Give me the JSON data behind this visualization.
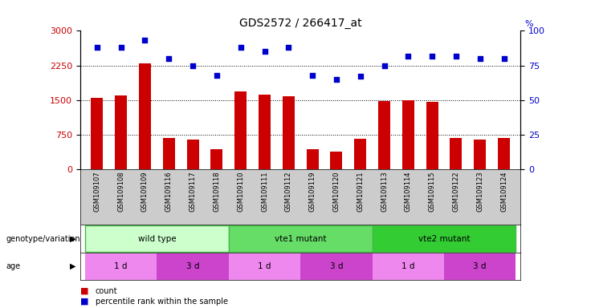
{
  "title": "GDS2572 / 266417_at",
  "samples": [
    "GSM109107",
    "GSM109108",
    "GSM109109",
    "GSM109116",
    "GSM109117",
    "GSM109118",
    "GSM109110",
    "GSM109111",
    "GSM109112",
    "GSM109119",
    "GSM109120",
    "GSM109121",
    "GSM109113",
    "GSM109114",
    "GSM109115",
    "GSM109122",
    "GSM109123",
    "GSM109124"
  ],
  "counts": [
    1550,
    1600,
    2300,
    680,
    650,
    430,
    1680,
    1620,
    1580,
    430,
    390,
    660,
    1480,
    1490,
    1470,
    680,
    650,
    680
  ],
  "percentiles": [
    88,
    88,
    93,
    80,
    75,
    68,
    88,
    85,
    88,
    68,
    65,
    67,
    75,
    82,
    82,
    82,
    80,
    80
  ],
  "ylim_left": [
    0,
    3000
  ],
  "ylim_right": [
    0,
    100
  ],
  "yticks_left": [
    0,
    750,
    1500,
    2250,
    3000
  ],
  "yticks_right": [
    0,
    25,
    50,
    75,
    100
  ],
  "bar_color": "#cc0000",
  "dot_color": "#0000cc",
  "genotype_groups": [
    {
      "label": "wild type",
      "start": 0,
      "end": 6,
      "color": "#ccffcc",
      "border_color": "#44bb44"
    },
    {
      "label": "vte1 mutant",
      "start": 6,
      "end": 12,
      "color": "#66dd66",
      "border_color": "#44bb44"
    },
    {
      "label": "vte2 mutant",
      "start": 12,
      "end": 18,
      "color": "#33cc33",
      "border_color": "#44bb44"
    }
  ],
  "age_groups": [
    {
      "label": "1 d",
      "start": 0,
      "end": 3,
      "color": "#ee88ee"
    },
    {
      "label": "3 d",
      "start": 3,
      "end": 6,
      "color": "#cc44cc"
    },
    {
      "label": "1 d",
      "start": 6,
      "end": 9,
      "color": "#ee88ee"
    },
    {
      "label": "3 d",
      "start": 9,
      "end": 12,
      "color": "#cc44cc"
    },
    {
      "label": "1 d",
      "start": 12,
      "end": 15,
      "color": "#ee88ee"
    },
    {
      "label": "3 d",
      "start": 15,
      "end": 18,
      "color": "#cc44cc"
    }
  ],
  "legend_count_color": "#cc0000",
  "legend_pct_color": "#0000cc",
  "background_color": "#ffffff",
  "tick_area_bg": "#cccccc"
}
